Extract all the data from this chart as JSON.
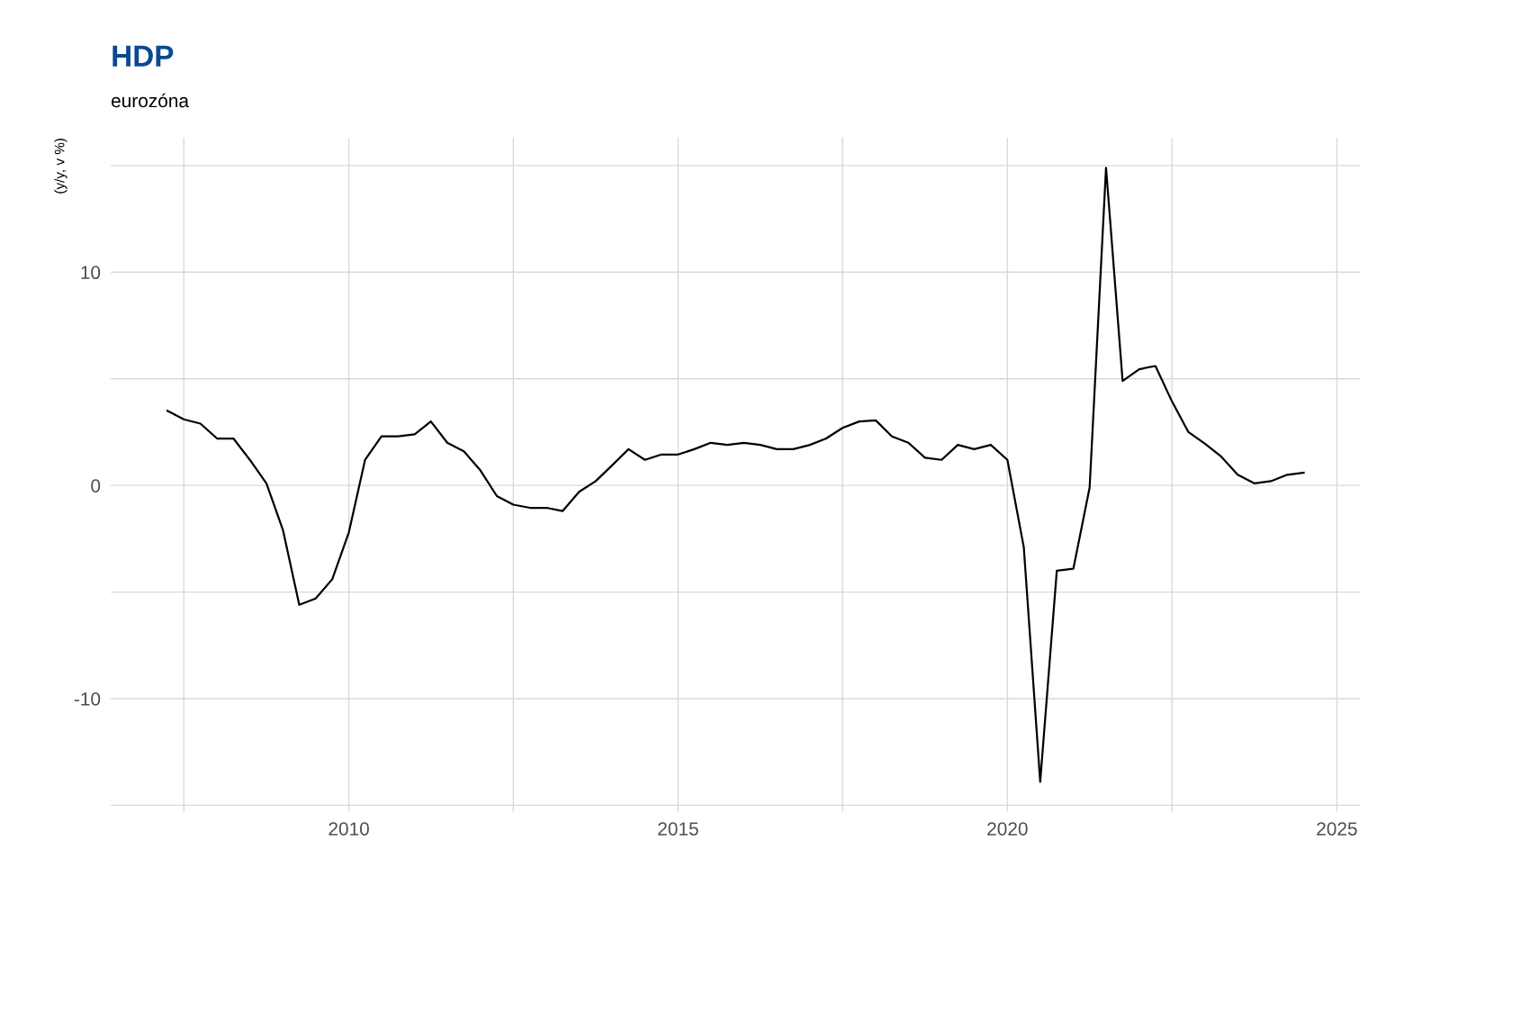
{
  "chart_data": {
    "type": "line",
    "title": "HDP",
    "subtitle": "eurozóna",
    "ylabel": "(y/y, v %)",
    "x": [
      "2007-04",
      "2007-07",
      "2007-10",
      "2008-01",
      "2008-04",
      "2008-07",
      "2008-10",
      "2009-01",
      "2009-04",
      "2009-07",
      "2009-10",
      "2010-01",
      "2010-04",
      "2010-07",
      "2010-10",
      "2011-01",
      "2011-04",
      "2011-07",
      "2011-10",
      "2012-01",
      "2012-04",
      "2012-07",
      "2012-10",
      "2013-01",
      "2013-04",
      "2013-07",
      "2013-10",
      "2014-01",
      "2014-04",
      "2014-07",
      "2014-10",
      "2015-01",
      "2015-04",
      "2015-07",
      "2015-10",
      "2016-01",
      "2016-04",
      "2016-07",
      "2016-10",
      "2017-01",
      "2017-04",
      "2017-07",
      "2017-10",
      "2018-01",
      "2018-04",
      "2018-07",
      "2018-10",
      "2019-01",
      "2019-04",
      "2019-07",
      "2019-10",
      "2020-01",
      "2020-04",
      "2020-07",
      "2020-10",
      "2021-01",
      "2021-04",
      "2021-07",
      "2021-10",
      "2022-01",
      "2022-04",
      "2022-07",
      "2022-10",
      "2023-01",
      "2023-04",
      "2023-07",
      "2023-10",
      "2024-01",
      "2024-04",
      "2024-07"
    ],
    "series": [
      {
        "color": "#000000",
        "values": [
          3.5,
          3.1,
          2.9,
          2.2,
          2.2,
          1.2,
          0.1,
          -2.1,
          -5.6,
          -5.3,
          -4.4,
          -2.2,
          1.2,
          2.3,
          2.3,
          2.4,
          3.0,
          2.0,
          1.6,
          0.7,
          -0.5,
          -0.9,
          -1.05,
          -1.05,
          -1.2,
          -0.3,
          0.2,
          0.95,
          1.7,
          1.2,
          1.45,
          1.45,
          1.7,
          2.0,
          1.9,
          2.0,
          1.9,
          1.7,
          1.7,
          1.9,
          2.2,
          2.7,
          3.0,
          3.05,
          2.3,
          2.0,
          1.3,
          1.2,
          1.9,
          1.7,
          1.9,
          1.2,
          -2.9,
          -13.9,
          -4.0,
          -3.9,
          -0.1,
          14.9,
          4.9,
          5.45,
          5.6,
          3.95,
          2.5,
          1.95,
          1.35,
          0.5,
          0.1,
          0.2,
          0.5,
          0.6
        ]
      }
    ],
    "xlim": [
      "2006-05-22",
      "2025-05-12"
    ],
    "xticks": [
      {
        "value": "2007-07",
        "label": null
      },
      "2010",
      {
        "value": "2012-07",
        "label": null
      },
      "2015",
      {
        "value": "2017-07",
        "label": null
      },
      "2020",
      {
        "value": "2022-07",
        "label": null
      },
      "2025"
    ],
    "ylim": [
      -15.3,
      16.3
    ],
    "yticks": [
      {
        "value": -15,
        "label": null
      },
      -10,
      {
        "value": -5,
        "label": null
      },
      0,
      {
        "value": 5,
        "label": null
      },
      10,
      {
        "value": 15,
        "label": null
      }
    ],
    "grid": true,
    "line_style": "solid",
    "marker": "none"
  }
}
